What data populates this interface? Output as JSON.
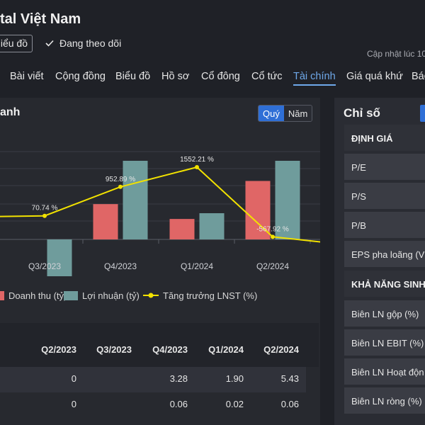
{
  "header": {
    "title": "tal Việt Nam",
    "chart_button": "iểu đồ",
    "follow_label": "Đang theo dõi",
    "updated_label": "Cập nhật lúc  10"
  },
  "nav": {
    "tabs": [
      {
        "label": "Bài viết"
      },
      {
        "label": "Cộng đồng"
      },
      {
        "label": "Biểu đồ"
      },
      {
        "label": "Hồ sơ"
      },
      {
        "label": "Cổ đông"
      },
      {
        "label": "Cổ tức"
      },
      {
        "label": "Tài chính",
        "active": true
      },
      {
        "label": "Giá quá khứ"
      },
      {
        "label": "Báo"
      }
    ]
  },
  "left_panel": {
    "title": "anh",
    "period_toggle": {
      "quarter": "Quý",
      "year": "Năm"
    }
  },
  "chart_data": {
    "type": "bar",
    "categories": [
      "Q3/2023",
      "Q4/2023",
      "Q1/2024",
      "Q2/2024"
    ],
    "series": [
      {
        "name": "Doanh thu (tỷ)",
        "values": [
          0,
          3.28,
          1.9,
          5.43
        ],
        "color": "#e06666"
      },
      {
        "name": "Lợi nhuận (tỷ)",
        "values": [
          -0.03,
          0.06,
          0.02,
          0.06
        ],
        "color": "#6f9c9c"
      },
      {
        "name": "Tăng trưởng LNST (%)",
        "type": "line",
        "values": [
          70.74,
          952.89,
          1552.21,
          -567.92
        ],
        "labels": [
          "70.74 %",
          "952.89 %",
          "1552.21 %",
          "-567.92 %"
        ],
        "color": "#f2e200"
      }
    ]
  },
  "legend": {
    "revenue": "Doanh thu (tỷ)",
    "profit": "Lợi nhuận (tỷ)",
    "growth": "Tăng trưởng LNST (%)"
  },
  "table": {
    "headers": [
      "Q2/2023",
      "Q3/2023",
      "Q4/2023",
      "Q1/2024",
      "Q2/2024"
    ],
    "rows": [
      [
        "0",
        "",
        "3.28",
        "1.90",
        "5.43"
      ],
      [
        "0",
        "",
        "0.06",
        "0.02",
        "0.06"
      ]
    ]
  },
  "right_panel": {
    "title": "Chỉ số",
    "section_valuation": "ĐỊNH GIÁ",
    "valuation_items": [
      "P/E",
      "P/S",
      "P/B",
      "EPS pha loãng (V"
    ],
    "section_profitability": "KHẢ NĂNG SINH",
    "profitability_items": [
      "Biên LN gộp (%)",
      "Biên LN EBIT (%)",
      "Biên LN Hoạt độn",
      "Biên LN ròng (%)"
    ]
  },
  "colors": {
    "accent": "#2f6fd6",
    "active_tab": "#6fa9ea",
    "revenue_bar": "#e06666",
    "profit_bar": "#6f9c9c",
    "growth_line": "#f2e200"
  }
}
